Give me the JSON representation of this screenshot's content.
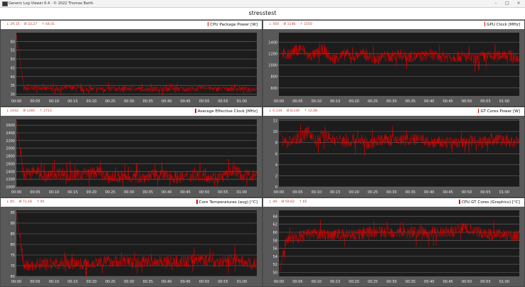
{
  "window": {
    "title": "Generic Log Viewer 6.4 - © 2022 Thomas Barth",
    "minimize_icon": "–",
    "maximize_icon": "□",
    "close_icon": "×"
  },
  "document_title": "stresstest",
  "colors": {
    "series": "#e00000",
    "plot_bg": "#1c1c1c",
    "panel_bg": "#595959",
    "grid": "#6a6a6a",
    "stats_text": "#c0392b"
  },
  "chart_data": [
    {
      "type": "line",
      "title": "CPU Package Power [W]",
      "stats": {
        "min": "↓ 29,15",
        "avg": "Ø 33,27",
        "max": "↑ 64,01"
      },
      "x_ticks": [
        "00:00",
        "00:05",
        "00:10",
        "00:15",
        "00:20",
        "00:25",
        "00:30",
        "00:35",
        "00:40",
        "00:45",
        "00:50",
        "00:55",
        "01:00"
      ],
      "xlim_minutes": [
        0,
        64
      ],
      "y_ticks": [
        30,
        35,
        40,
        45,
        50,
        55,
        60
      ],
      "ylim": [
        29,
        65
      ],
      "grid": true,
      "x_minutes": [
        0,
        2,
        4,
        6,
        8,
        10,
        12,
        14,
        16,
        18,
        20,
        22,
        24,
        26,
        28,
        30,
        32,
        34,
        36,
        38,
        40,
        42,
        44,
        46,
        48,
        50,
        52,
        54,
        56,
        58,
        60,
        62,
        64
      ],
      "values": [
        64,
        33,
        33,
        34,
        33,
        33,
        33,
        34,
        33,
        33,
        33,
        33,
        33,
        33,
        33,
        33,
        33,
        33,
        33,
        33,
        33,
        33,
        33,
        33,
        33,
        34,
        33,
        33,
        33,
        33,
        33,
        33,
        33
      ]
    },
    {
      "type": "line",
      "title": "GPU Clock [MHz]",
      "stats": {
        "min": "↓ 450",
        "avg": "Ø 1148",
        "max": "↑ 1550"
      },
      "x_ticks": [
        "00:00",
        "00:05",
        "00:10",
        "00:15",
        "00:20",
        "00:25",
        "00:30",
        "00:35",
        "00:40",
        "00:45",
        "00:50",
        "00:55",
        "01:00"
      ],
      "xlim_minutes": [
        0,
        64
      ],
      "y_ticks": [
        600,
        800,
        1000,
        1200,
        1400
      ],
      "ylim": [
        460,
        1570
      ],
      "grid": true,
      "x_minutes": [
        0,
        2,
        4,
        6,
        8,
        10,
        12,
        14,
        16,
        18,
        20,
        22,
        24,
        26,
        28,
        30,
        32,
        34,
        36,
        38,
        40,
        42,
        44,
        46,
        48,
        50,
        52,
        54,
        56,
        58,
        60,
        62,
        64
      ],
      "values": [
        1300,
        1150,
        1250,
        1300,
        1150,
        1200,
        1280,
        1100,
        1150,
        1200,
        1150,
        1200,
        1150,
        1100,
        1150,
        1150,
        1200,
        1150,
        1150,
        1150,
        1200,
        1150,
        1150,
        1150,
        1150,
        1150,
        1100,
        1150,
        1150,
        1150,
        1200,
        1150,
        1100
      ]
    },
    {
      "type": "line",
      "title": "Average Effective Clock [MHz]",
      "stats": {
        "min": "↓ 1032",
        "avg": "Ø 1281",
        "max": "↑ 2713"
      },
      "x_ticks": [
        "00:00",
        "00:05",
        "00:10",
        "00:15",
        "00:20",
        "00:25",
        "00:30",
        "00:35",
        "00:40",
        "00:45",
        "00:50",
        "00:55",
        "01:00"
      ],
      "xlim_minutes": [
        0,
        64
      ],
      "y_ticks": [
        1000,
        1200,
        1400,
        1600,
        1800,
        2000,
        2200,
        2400,
        2600
      ],
      "ylim": [
        1000,
        2750
      ],
      "grid": true,
      "x_minutes": [
        0,
        2,
        4,
        6,
        8,
        10,
        12,
        14,
        16,
        18,
        20,
        22,
        24,
        26,
        28,
        30,
        32,
        34,
        36,
        38,
        40,
        42,
        44,
        46,
        48,
        50,
        52,
        54,
        56,
        58,
        60,
        62,
        64
      ],
      "values": [
        2700,
        1300,
        1400,
        1400,
        1250,
        1350,
        1350,
        1300,
        1300,
        1350,
        1350,
        1400,
        1250,
        1250,
        1250,
        1250,
        1250,
        1250,
        1300,
        1300,
        1300,
        1250,
        1250,
        1250,
        1300,
        1300,
        1250,
        1250,
        1300,
        1450,
        1300,
        1300,
        1300
      ]
    },
    {
      "type": "line",
      "title": "GT Cores Power [W]",
      "stats": {
        "min": "↓ 0,134",
        "avg": "Ø 8,330",
        "max": "↑ 12,08"
      },
      "x_ticks": [
        "00:00",
        "00:05",
        "00:10",
        "00:15",
        "00:20",
        "00:25",
        "00:30",
        "00:35",
        "00:40",
        "00:45",
        "00:50",
        "00:55",
        "01:00"
      ],
      "xlim_minutes": [
        0,
        64
      ],
      "y_ticks": [
        0,
        2,
        4,
        6,
        8,
        10,
        12
      ],
      "ylim": [
        0,
        12.2
      ],
      "grid": true,
      "x_minutes": [
        0,
        2,
        4,
        6,
        8,
        10,
        12,
        14,
        16,
        18,
        20,
        22,
        24,
        26,
        28,
        30,
        32,
        34,
        36,
        38,
        40,
        42,
        44,
        46,
        48,
        50,
        52,
        54,
        56,
        58,
        60,
        62,
        64
      ],
      "values": [
        10,
        8,
        8.5,
        9,
        10,
        8,
        9.5,
        8.5,
        8.5,
        8,
        8.5,
        8.5,
        7.5,
        8.5,
        8.5,
        8.5,
        8.5,
        8.5,
        8.5,
        8.5,
        8,
        8,
        8,
        8,
        8,
        8,
        8.5,
        8,
        8.5,
        8.5,
        8.5,
        8,
        8
      ]
    },
    {
      "type": "line",
      "title": "Core Temperatures (avg) [°C]",
      "stats": {
        "min": "↓ 65",
        "avg": "Ø 71,18",
        "max": "↑ 95"
      },
      "x_ticks": [
        "00:00",
        "00:05",
        "00:10",
        "00:15",
        "00:20",
        "00:25",
        "00:30",
        "00:35",
        "00:40",
        "00:45",
        "00:50",
        "00:55",
        "01:00"
      ],
      "xlim_minutes": [
        0,
        64
      ],
      "y_ticks": [
        65,
        70,
        75,
        80,
        85,
        90,
        95
      ],
      "ylim": [
        65,
        96
      ],
      "grid": true,
      "x_minutes": [
        0,
        2,
        4,
        6,
        8,
        10,
        12,
        14,
        16,
        18,
        20,
        22,
        24,
        26,
        28,
        30,
        32,
        34,
        36,
        38,
        40,
        42,
        44,
        46,
        48,
        50,
        52,
        54,
        56,
        58,
        60,
        62,
        64
      ],
      "values": [
        95,
        70,
        70,
        71,
        71,
        71,
        71,
        71,
        71,
        71,
        71,
        72,
        72,
        72,
        72,
        72,
        71,
        72,
        72,
        72,
        72,
        72,
        72,
        72,
        73,
        73,
        72,
        72,
        72,
        73,
        72,
        71,
        71
      ]
    },
    {
      "type": "line",
      "title": "CPU GT Cores (Graphics) [°C]",
      "stats": {
        "min": "↓ 49",
        "avg": "Ø 59,83",
        "max": "↑ 65"
      },
      "x_ticks": [
        "00:00",
        "00:05",
        "00:10",
        "00:15",
        "00:20",
        "00:25",
        "00:30",
        "00:35",
        "00:40",
        "00:45",
        "00:50",
        "00:55",
        "01:00"
      ],
      "xlim_minutes": [
        0,
        64
      ],
      "y_ticks": [
        50,
        52,
        54,
        56,
        58,
        60,
        62,
        64
      ],
      "ylim": [
        49,
        65.5
      ],
      "grid": true,
      "x_minutes": [
        0,
        2,
        4,
        6,
        8,
        10,
        12,
        14,
        16,
        18,
        20,
        22,
        24,
        26,
        28,
        30,
        32,
        34,
        36,
        38,
        40,
        42,
        44,
        46,
        48,
        50,
        52,
        54,
        56,
        58,
        60,
        62,
        64
      ],
      "values": [
        49,
        58.5,
        58.5,
        59,
        59.5,
        59.5,
        59.5,
        59.5,
        59.5,
        59.5,
        59.5,
        59.5,
        60,
        60,
        60,
        60,
        60,
        60,
        60,
        60,
        60,
        60,
        60,
        60,
        61,
        61,
        60,
        60,
        59.5,
        59.5,
        59.5,
        59,
        59
      ]
    }
  ]
}
